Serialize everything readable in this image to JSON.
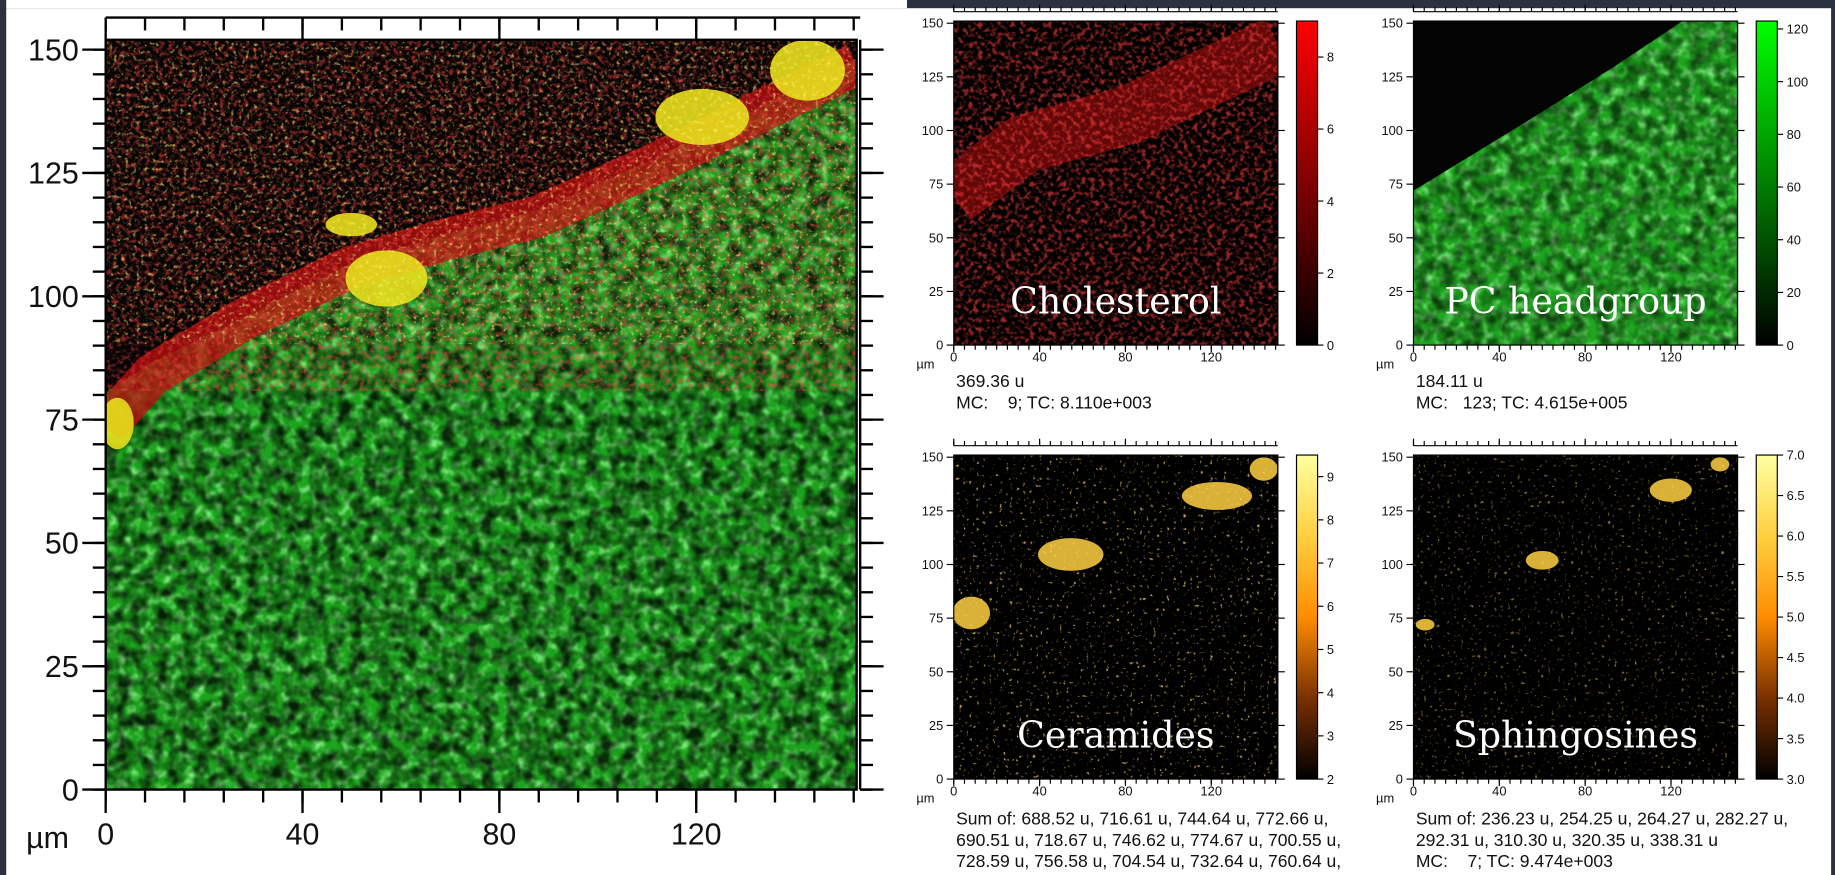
{
  "main": {
    "unit": "µm",
    "xlim": [
      0,
      152.6
    ],
    "ylim": [
      0,
      152
    ],
    "xticks": [
      0,
      40,
      80,
      120
    ],
    "yticks": [
      0,
      25,
      50,
      75,
      100,
      125,
      150
    ],
    "x_minor_step": 8,
    "y_minor_step": 5
  },
  "panels": [
    {
      "label": "Cholesterol",
      "unit": "µm",
      "xlim": [
        0,
        151
      ],
      "ylim": [
        0,
        151
      ],
      "xticks": [
        0,
        40,
        80,
        120
      ],
      "yticks": [
        0,
        25,
        50,
        75,
        100,
        125,
        150
      ],
      "x_minor_step": 5,
      "colorbar": {
        "lim": [
          0,
          9
        ],
        "ticks": [
          0,
          2,
          4,
          6,
          8
        ],
        "colormap": [
          "#000000",
          "#ff0000"
        ]
      },
      "info": [
        "369.36 u",
        "MC:    9; TC: 8.110e+003"
      ]
    },
    {
      "label": "PC headgroup",
      "unit": "µm",
      "xlim": [
        0,
        151
      ],
      "ylim": [
        0,
        151
      ],
      "xticks": [
        0,
        40,
        80,
        120
      ],
      "yticks": [
        0,
        25,
        50,
        75,
        100,
        125,
        150
      ],
      "x_minor_step": 5,
      "colorbar": {
        "lim": [
          0,
          123
        ],
        "ticks": [
          0,
          20,
          40,
          60,
          80,
          100,
          120
        ],
        "colormap": [
          "#000000",
          "#00ff00"
        ]
      },
      "info": [
        "184.11 u",
        "MC:   123; TC: 4.615e+005"
      ]
    },
    {
      "label": "Ceramides",
      "unit": "µm",
      "xlim": [
        0,
        151
      ],
      "ylim": [
        0,
        151
      ],
      "xticks": [
        0,
        40,
        80,
        120
      ],
      "yticks": [
        0,
        25,
        50,
        75,
        100,
        125,
        150
      ],
      "x_minor_step": 5,
      "colorbar": {
        "lim": [
          2,
          9.5
        ],
        "ticks": [
          2,
          3,
          4,
          5,
          6,
          7,
          8,
          9
        ],
        "colormap": [
          "#000000",
          "#7a3000",
          "#ff8c00",
          "#ffd040",
          "#ffffa0"
        ]
      },
      "info": [
        "Sum of: 688.52 u, 716.61 u, 744.64 u, 772.66 u,",
        "690.51 u, 718.67 u, 746.62 u, 774.67 u, 700.55 u,",
        "728.59 u, 756.58 u, 704.54 u, 732.64 u, 760.64 u,"
      ]
    },
    {
      "label": "Sphingosines",
      "unit": "µm",
      "xlim": [
        0,
        151
      ],
      "ylim": [
        0,
        151
      ],
      "xticks": [
        0,
        40,
        80,
        120
      ],
      "yticks": [
        0,
        25,
        50,
        75,
        100,
        125,
        150
      ],
      "x_minor_step": 5,
      "colorbar": {
        "lim": [
          3,
          7
        ],
        "ticks": [
          {
            "value": 3,
            "label": "3.0"
          },
          {
            "value": 3.5,
            "label": "3.5"
          },
          {
            "value": 4,
            "label": "4.0"
          },
          {
            "value": 4.5,
            "label": "4.5"
          },
          {
            "value": 5,
            "label": "5.0"
          },
          {
            "value": 5.5,
            "label": "5.5"
          },
          {
            "value": 6,
            "label": "6.0"
          },
          {
            "value": 6.5,
            "label": "6.5"
          },
          {
            "value": 7,
            "label": "7.0"
          }
        ],
        "colormap": [
          "#000000",
          "#7a3000",
          "#ff8c00",
          "#ffd040",
          "#ffffa0"
        ]
      },
      "info": [
        "Sum of: 236.23 u, 254.25 u, 264.27 u, 282.27 u,",
        "292.31 u, 310.30 u, 320.35 u, 338.31 u",
        "MC:    7; TC: 9.474e+003"
      ]
    }
  ]
}
